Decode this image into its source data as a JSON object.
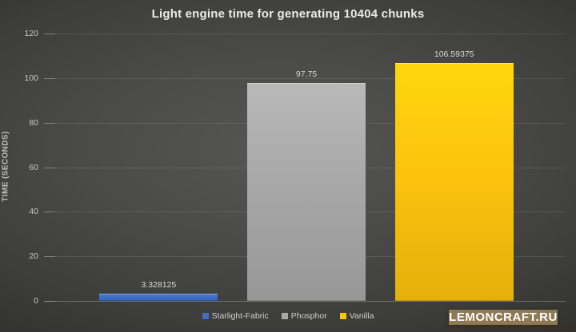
{
  "title": "Light engine time for generating 10404 chunks",
  "chart_data": {
    "type": "bar",
    "title": "Light engine time for generating 10404 chunks",
    "categories": [
      "Starlight-Fabric",
      "Phosphor",
      "Vanilla"
    ],
    "values": [
      3.328125,
      97.75,
      106.59375
    ],
    "value_labels": [
      "3.328125",
      "97.75",
      "106.59375"
    ],
    "colors": [
      "#3f6ec5",
      "#a8a8a8",
      "#fdc30d"
    ],
    "xlabel": "",
    "ylabel": "TIME (SECONDS)",
    "ylim": [
      0,
      120
    ],
    "yticks": [
      0,
      20,
      40,
      60,
      80,
      100,
      120
    ],
    "grid": true,
    "legend_position": "bottom",
    "background_theme": "dark-gray-vignette"
  },
  "watermark": {
    "text": "LEMONCRAFT.RU",
    "bg_color": "#8e7955"
  }
}
